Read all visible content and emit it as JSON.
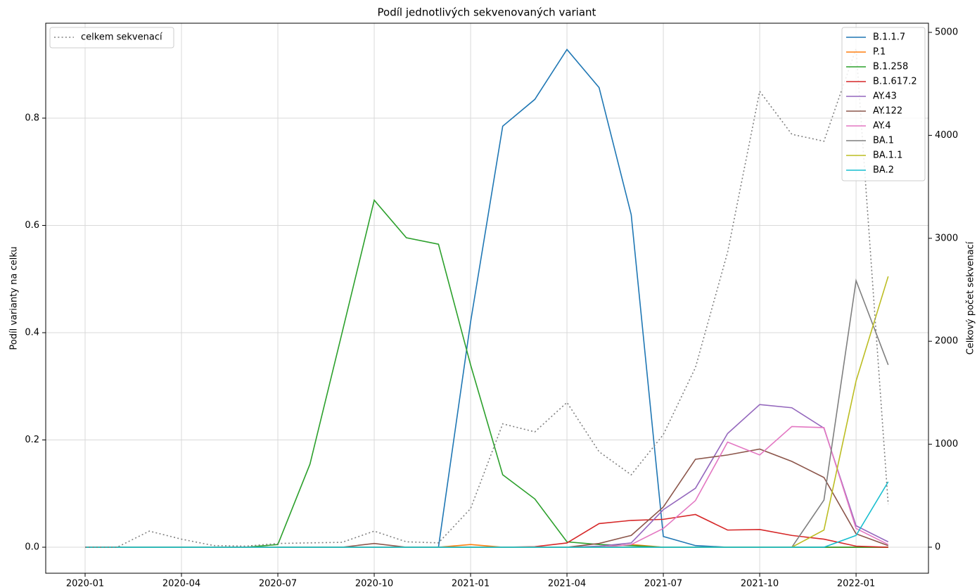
{
  "chart_data": {
    "type": "line",
    "title": "Podíl jednotlivých sekvenovaných variant",
    "y_label": "Podíl varianty na celku",
    "y2_label": "Celkový počet sekvenací",
    "x": [
      "2020-01",
      "2020-02",
      "2020-03",
      "2020-04",
      "2020-05",
      "2020-06",
      "2020-07",
      "2020-08",
      "2020-09",
      "2020-10",
      "2020-11",
      "2020-12",
      "2021-01",
      "2021-02",
      "2021-03",
      "2021-04",
      "2021-05",
      "2021-06",
      "2021-07",
      "2021-08",
      "2021-09",
      "2021-10",
      "2021-11",
      "2021-12",
      "2022-01",
      "2022-02"
    ],
    "xticks": [
      "2020-01",
      "2020-04",
      "2020-07",
      "2020-10",
      "2021-01",
      "2021-04",
      "2021-07",
      "2021-10",
      "2022-01"
    ],
    "ylim": [
      -0.0485,
      0.977
    ],
    "yticks": [
      {
        "value": 0,
        "label": "0.0"
      },
      0.2,
      0.4,
      0.6,
      0.8
    ],
    "y2lim": [
      -253,
      5089
    ],
    "y2ticks": [
      0,
      1000,
      2000,
      3000,
      4000,
      5000
    ],
    "grid": true,
    "legend": "upper right",
    "legend2": "upper left",
    "series": [
      {
        "name": "B.1.1.7",
        "color": "#1f77b4",
        "values": [
          0,
          0,
          0,
          0,
          0,
          0,
          0,
          0,
          0,
          0,
          0,
          0,
          0.42,
          0.785,
          0.835,
          0.928,
          0.857,
          0.62,
          0.02,
          0.003,
          0,
          0,
          0,
          0,
          0,
          0
        ]
      },
      {
        "name": "P.1",
        "color": "#ff7f0e",
        "values": [
          0,
          0,
          0,
          0,
          0,
          0,
          0,
          0,
          0,
          0,
          0,
          0,
          0.005,
          0,
          0,
          0,
          0,
          0.005,
          0,
          0,
          0,
          0,
          0,
          0,
          0,
          0
        ]
      },
      {
        "name": "B.1.258",
        "color": "#2ca02c",
        "values": [
          0,
          0,
          0,
          0,
          0,
          0,
          0.005,
          0.155,
          0.4,
          0.647,
          0.577,
          0.565,
          0.34,
          0.135,
          0.09,
          0.01,
          0.005,
          0.003,
          0,
          0,
          0,
          0,
          0,
          0,
          0,
          0
        ]
      },
      {
        "name": "B.1.617.2",
        "color": "#d62728",
        "values": [
          0,
          0,
          0,
          0,
          0,
          0,
          0,
          0,
          0,
          0,
          0,
          0,
          0,
          0,
          0.001,
          0.008,
          0.044,
          0.05,
          0.052,
          0.061,
          0.032,
          0.033,
          0.022,
          0.015,
          0.002,
          0
        ]
      },
      {
        "name": "AY.43",
        "color": "#9467bd",
        "values": [
          0,
          0,
          0,
          0,
          0,
          0,
          0,
          0,
          0,
          0,
          0,
          0,
          0,
          0,
          0,
          0,
          0.002,
          0.008,
          0.07,
          0.11,
          0.212,
          0.266,
          0.26,
          0.222,
          0.04,
          0.01
        ]
      },
      {
        "name": "AY.122",
        "color": "#8c564b",
        "values": [
          0,
          0,
          0,
          0,
          0,
          0,
          0,
          0,
          0,
          0.007,
          0,
          0,
          0,
          0,
          0,
          0,
          0.007,
          0.022,
          0.075,
          0.164,
          0.172,
          0.183,
          0.16,
          0.13,
          0.025,
          0.003
        ]
      },
      {
        "name": "AY.4",
        "color": "#e377c2",
        "values": [
          0,
          0,
          0,
          0,
          0,
          0,
          0,
          0,
          0,
          0,
          0,
          0,
          0,
          0,
          0,
          0,
          0,
          0.005,
          0.035,
          0.087,
          0.196,
          0.172,
          0.225,
          0.223,
          0.035,
          0.005
        ]
      },
      {
        "name": "BA.1",
        "color": "#7f7f7f",
        "values": [
          0,
          0,
          0,
          0,
          0,
          0,
          0,
          0,
          0,
          0,
          0,
          0,
          0,
          0,
          0,
          0,
          0,
          0,
          0,
          0,
          0,
          0,
          0,
          0.088,
          0.497,
          0.34
        ]
      },
      {
        "name": "BA.1.1",
        "color": "#bcbd22",
        "values": [
          0,
          0,
          0,
          0,
          0,
          0,
          0,
          0,
          0,
          0,
          0,
          0,
          0,
          0,
          0,
          0,
          0,
          0,
          0,
          0,
          0,
          0,
          0,
          0.032,
          0.31,
          0.505
        ]
      },
      {
        "name": "BA.2",
        "color": "#17becf",
        "values": [
          0,
          0,
          0,
          0,
          0,
          0,
          0,
          0,
          0,
          0,
          0,
          0,
          0,
          0,
          0,
          0,
          0,
          0,
          0,
          0,
          0,
          0,
          0,
          0,
          0.022,
          0.122
        ]
      },
      {
        "name": "celkem sekvenací",
        "color": "#808080",
        "axis": "y2",
        "linestyle": "dotted",
        "values": [
          0,
          0,
          156,
          78,
          16,
          10,
          36,
          42,
          47,
          156,
          52,
          42,
          375,
          1198,
          1120,
          1406,
          927,
          703,
          1094,
          1745,
          2864,
          4427,
          4010,
          3943,
          4843,
          417
        ]
      }
    ]
  }
}
